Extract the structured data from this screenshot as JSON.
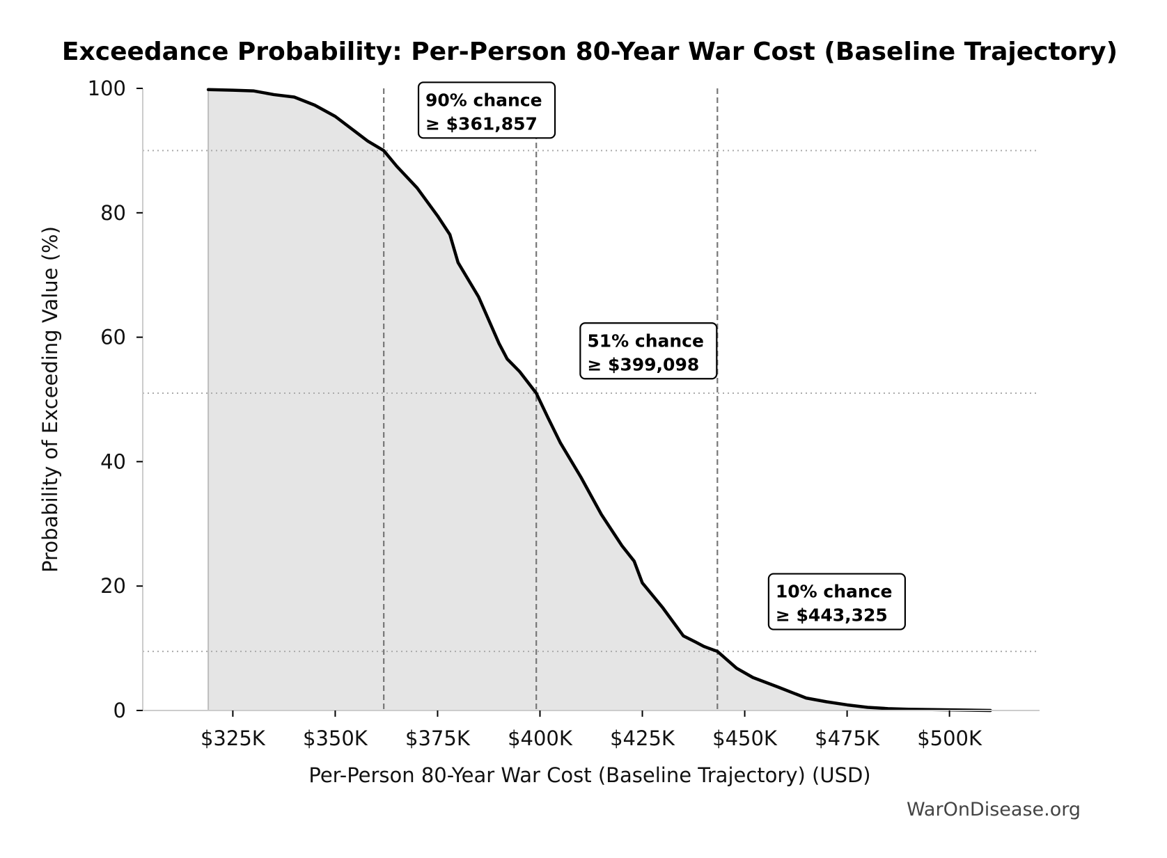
{
  "chart_data": {
    "type": "area",
    "title": "Exceedance Probability: Per-Person 80-Year War Cost (Baseline Trajectory)",
    "xlabel": "Per-Person 80-Year War Cost (Baseline Trajectory) (USD)",
    "ylabel": "Probability of Exceeding Value (%)",
    "xlim": [
      303000,
      522000
    ],
    "ylim": [
      0,
      100
    ],
    "x_ticks": [
      {
        "value": 325000,
        "label": "$325K"
      },
      {
        "value": 350000,
        "label": "$350K"
      },
      {
        "value": 375000,
        "label": "$375K"
      },
      {
        "value": 400000,
        "label": "$400K"
      },
      {
        "value": 425000,
        "label": "$425K"
      },
      {
        "value": 450000,
        "label": "$450K"
      },
      {
        "value": 475000,
        "label": "$475K"
      },
      {
        "value": 500000,
        "label": "$500K"
      }
    ],
    "y_ticks": [
      {
        "value": 0,
        "label": "0"
      },
      {
        "value": 20,
        "label": "20"
      },
      {
        "value": 40,
        "label": "40"
      },
      {
        "value": 60,
        "label": "60"
      },
      {
        "value": 80,
        "label": "80"
      },
      {
        "value": 100,
        "label": "100"
      }
    ],
    "series": [
      {
        "color": "#000000",
        "fill": "#e5e5e5",
        "x": [
          319000,
          325000,
          330000,
          335000,
          340000,
          345000,
          350000,
          355000,
          358000,
          361857,
          365000,
          370000,
          375000,
          378000,
          380000,
          385000,
          390000,
          392000,
          395000,
          399098,
          402000,
          405000,
          410000,
          415000,
          420000,
          423000,
          425000,
          430000,
          435000,
          438000,
          440000,
          443325,
          448000,
          452000,
          458000,
          465000,
          470000,
          475000,
          480000,
          485000,
          490000,
          500000,
          510000
        ],
        "y": [
          99.8,
          99.7,
          99.6,
          99.0,
          98.6,
          97.3,
          95.5,
          93.0,
          91.5,
          90.0,
          87.5,
          84.0,
          79.5,
          76.5,
          72.0,
          66.5,
          59.0,
          56.5,
          54.5,
          51.0,
          47.0,
          43.0,
          37.5,
          31.5,
          26.5,
          24.0,
          20.5,
          16.5,
          12.0,
          11.0,
          10.3,
          9.5,
          6.8,
          5.3,
          3.8,
          2.0,
          1.4,
          0.9,
          0.5,
          0.3,
          0.2,
          0.1,
          0.0
        ]
      }
    ],
    "threshold_lines": [
      {
        "x": 361857,
        "y": 90,
        "label_line1": "90% chance",
        "label_line2": "≥ $361,857",
        "label_at": [
          387000,
          96.5
        ]
      },
      {
        "x": 399098,
        "y": 51,
        "label_line1": "51% chance",
        "label_line2": "≥ $399,098",
        "label_at": [
          426500,
          57.8
        ]
      },
      {
        "x": 443325,
        "y": 9.5,
        "label_line1": "10% chance",
        "label_line2": "≥ $443,325",
        "label_at": [
          472500,
          17.5
        ]
      }
    ],
    "colors": {
      "line": "#000000",
      "fill": "#e5e5e5",
      "reference": "#777777",
      "horizontal_reference": "#aaaaaa",
      "axis": "#cccccc"
    },
    "grid": false,
    "legend": "none"
  },
  "watermark": "WarOnDisease.org"
}
